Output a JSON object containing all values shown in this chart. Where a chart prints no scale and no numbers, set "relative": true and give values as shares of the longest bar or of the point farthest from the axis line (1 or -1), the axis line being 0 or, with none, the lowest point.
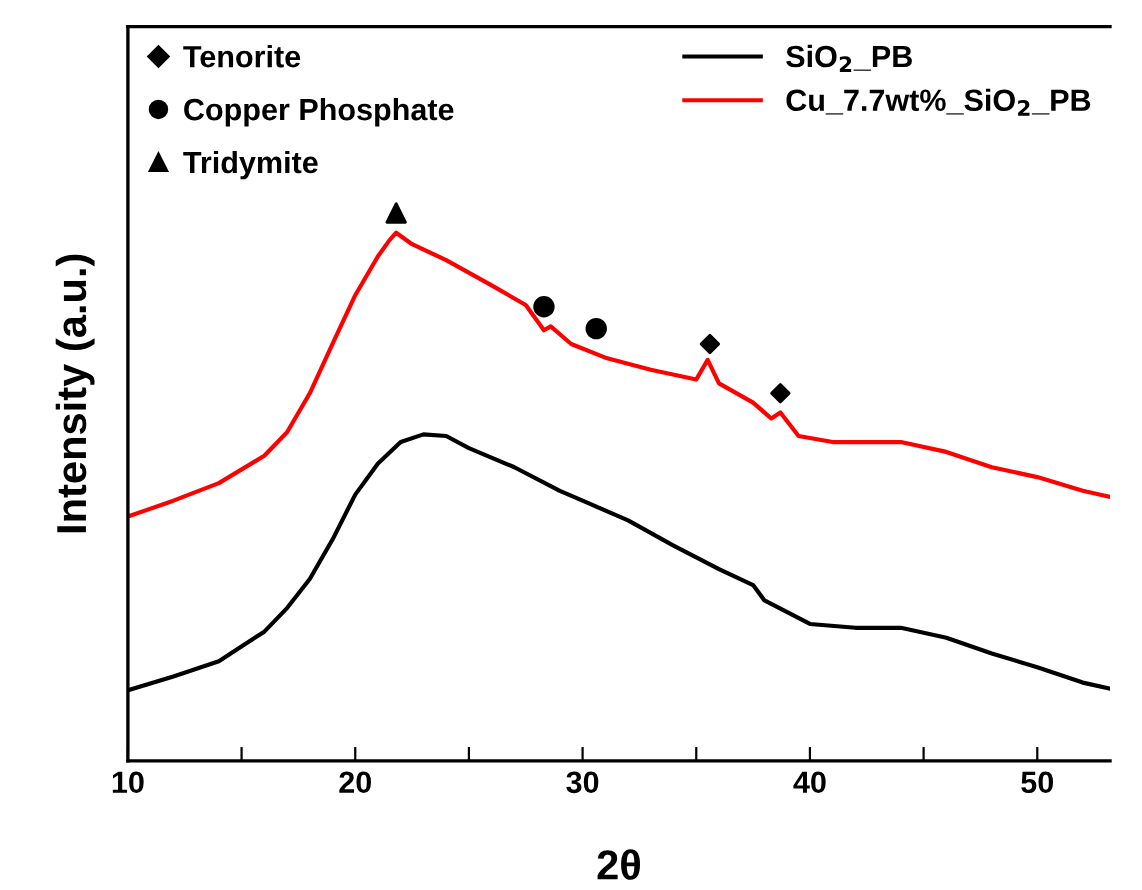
{
  "chart_data": {
    "type": "line",
    "xlabel": "2θ",
    "ylabel": "Intensity (a.u.)",
    "relative": true,
    "xlim": [
      10,
      53.2
    ],
    "xticks": [
      10,
      {
        "value": 15,
        "label": null
      },
      20,
      {
        "value": 25,
        "label": null
      },
      30,
      {
        "value": 35,
        "label": null
      },
      40,
      {
        "value": 45,
        "label": null
      },
      50
    ],
    "grid": false,
    "legend": "top right",
    "tick_labels": "x",
    "series": [
      {
        "name": "SiO$_{2}$_PB",
        "color": "#000000",
        "x": [
          10,
          12,
          14,
          16,
          17,
          18,
          19,
          20,
          21,
          22,
          23,
          24,
          25,
          27,
          29,
          30,
          32,
          34,
          36,
          37.5,
          38,
          40,
          42,
          44,
          46,
          48,
          50,
          52,
          53.2
        ],
        "values": [
          0.129,
          0.154,
          0.182,
          0.236,
          0.279,
          0.332,
          0.404,
          0.486,
          0.543,
          0.582,
          0.596,
          0.593,
          0.571,
          0.536,
          0.493,
          0.475,
          0.439,
          0.393,
          0.35,
          0.321,
          0.293,
          0.25,
          0.243,
          0.243,
          0.225,
          0.196,
          0.171,
          0.143,
          0.132
        ]
      },
      {
        "name": "Cu_7.7wt%_SiO$_{2}$_PB",
        "color": "#ff0000",
        "x": [
          10,
          12,
          14,
          16,
          17,
          18,
          19,
          20,
          21,
          21.5,
          21.8,
          22.5,
          24,
          26,
          27.5,
          28.3,
          28.6,
          29.5,
          31,
          33,
          35,
          35.5,
          36,
          37.5,
          38.3,
          38.7,
          39.5,
          41,
          44,
          46,
          48,
          50,
          52,
          53.2
        ],
        "values": [
          0.446,
          0.475,
          0.507,
          0.557,
          0.6,
          0.671,
          0.761,
          0.85,
          0.921,
          0.95,
          0.964,
          0.943,
          0.914,
          0.868,
          0.832,
          0.786,
          0.793,
          0.761,
          0.736,
          0.714,
          0.696,
          0.732,
          0.689,
          0.654,
          0.625,
          0.636,
          0.593,
          0.582,
          0.582,
          0.564,
          0.536,
          0.518,
          0.493,
          0.482
        ]
      },
      {
        "type": "scatter",
        "name": "Tenorite",
        "color": "#000000",
        "marker": "diamond",
        "x": [
          35.6,
          38.7
        ],
        "values": [
          0.761,
          0.671
        ]
      },
      {
        "type": "scatter",
        "name": "Copper Phosphate",
        "color": "#000000",
        "marker": "circle",
        "x": [
          28.3,
          30.6
        ],
        "values": [
          0.829,
          0.789
        ]
      },
      {
        "type": "scatter",
        "name": "Tridymite",
        "color": "#000000",
        "marker": "triangle",
        "x": [
          21.8
        ],
        "values": [
          1.0
        ]
      }
    ]
  }
}
